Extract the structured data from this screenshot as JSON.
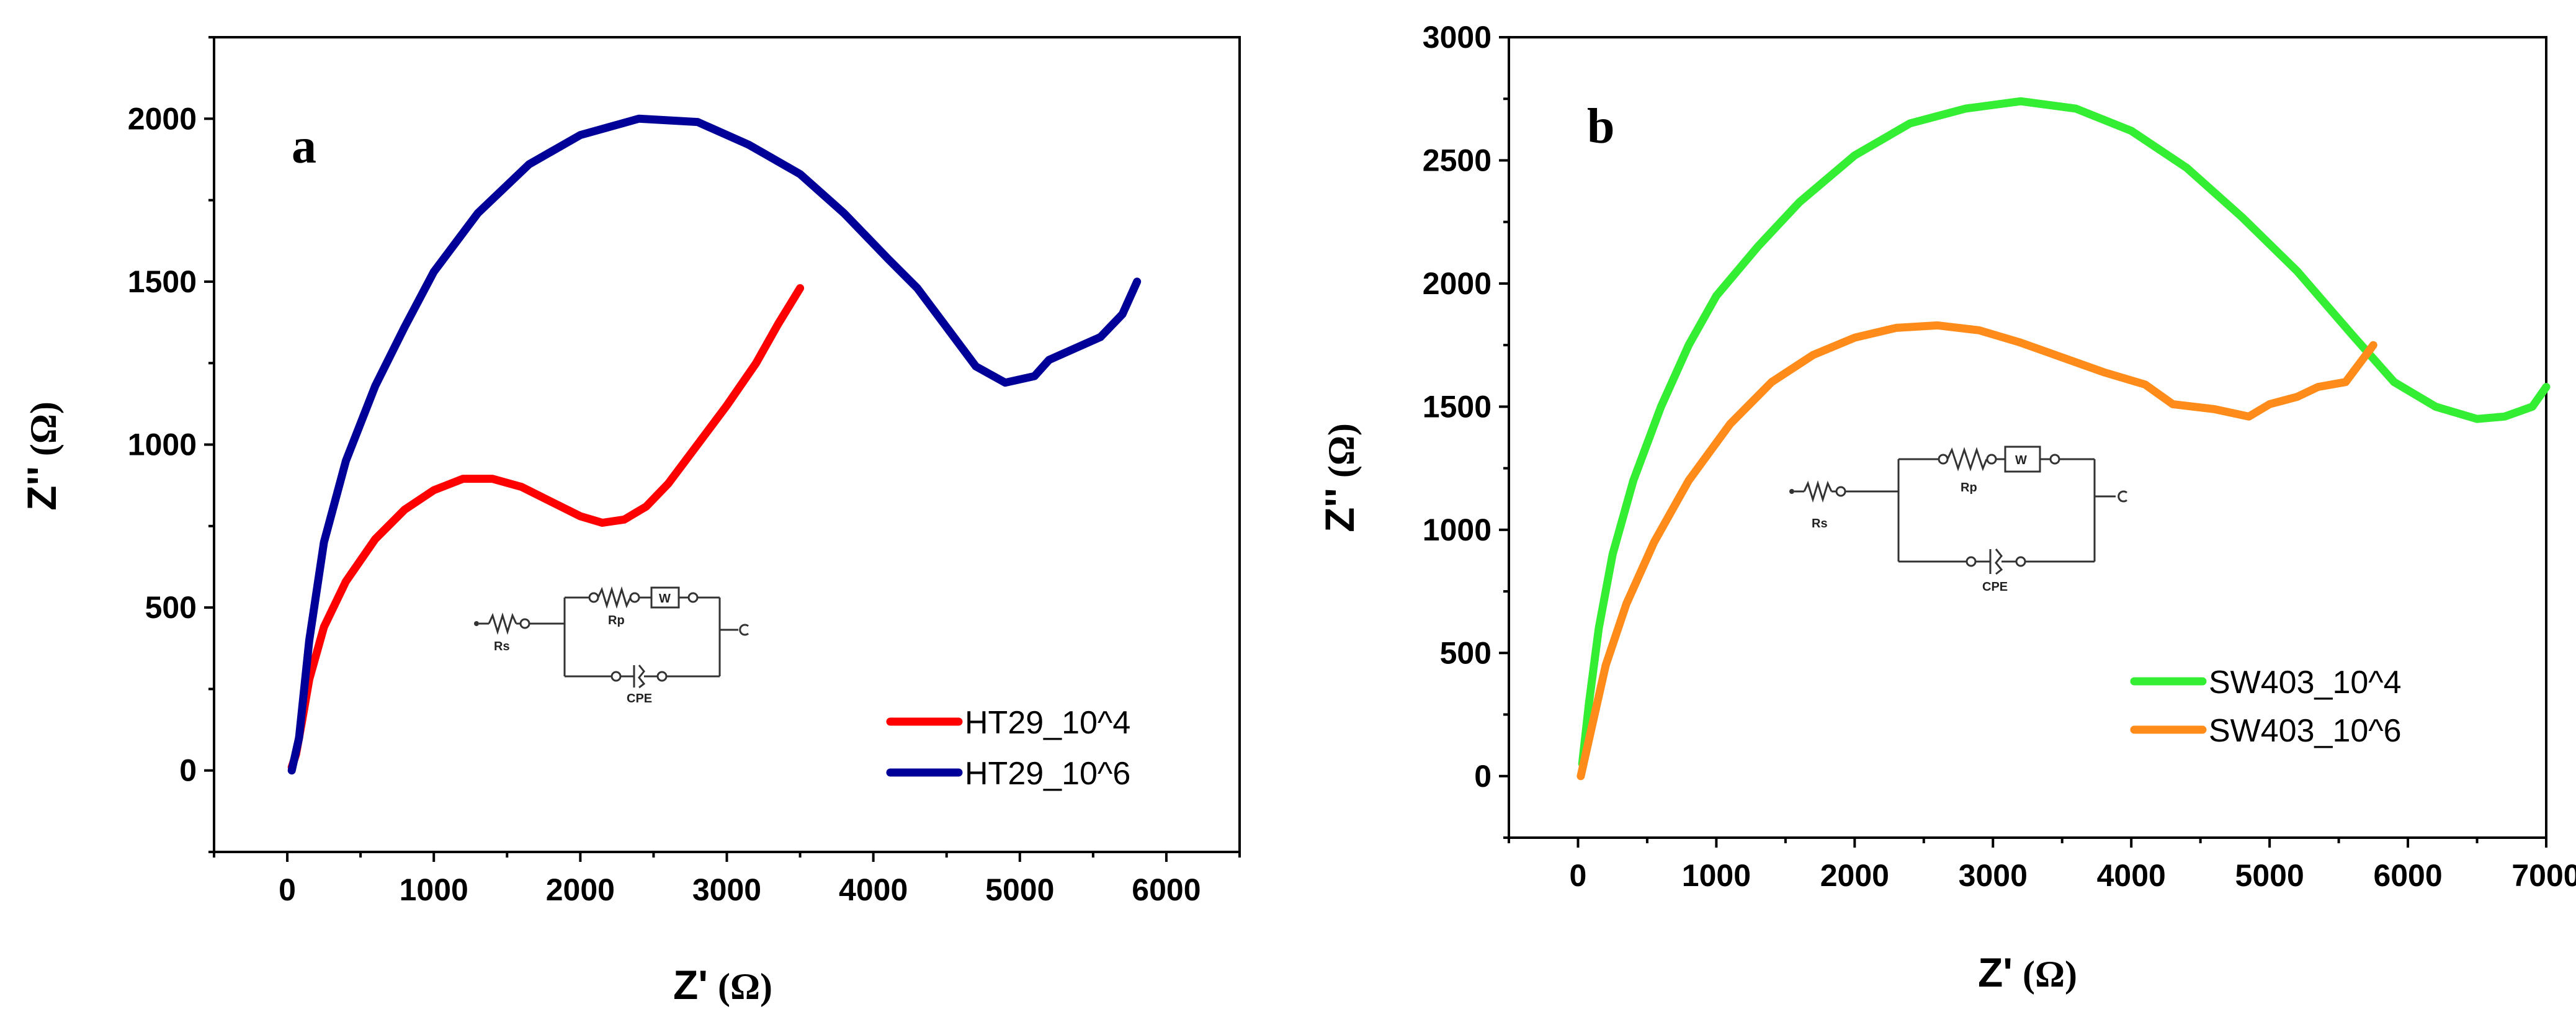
{
  "chart_data": [
    {
      "type": "line",
      "panel_label": "a",
      "xlabel": "Z'",
      "ylabel": "Z''",
      "unit": "(Ω)",
      "xlim": [
        -500,
        6500
      ],
      "ylim": [
        -250,
        2250
      ],
      "xticks": [
        0,
        1000,
        2000,
        3000,
        4000,
        5000,
        6000
      ],
      "yticks": [
        0,
        500,
        1000,
        1500,
        2000
      ],
      "legend_position": "bottom-right",
      "circuit": {
        "rs": "Rs",
        "rp": "Rp",
        "w": "W",
        "cpe": "CPE"
      },
      "series": [
        {
          "name": "HT29_10^4",
          "color": "#ff0000",
          "x": [
            30,
            60,
            100,
            150,
            250,
            400,
            600,
            800,
            1000,
            1200,
            1400,
            1600,
            1800,
            2000,
            2150,
            2300,
            2450,
            2600,
            2800,
            3000,
            3200,
            3350,
            3500
          ],
          "y": [
            10,
            50,
            150,
            280,
            440,
            580,
            710,
            800,
            860,
            895,
            895,
            870,
            825,
            780,
            760,
            770,
            810,
            880,
            1000,
            1120,
            1250,
            1370,
            1480
          ]
        },
        {
          "name": "HT29_10^6",
          "color": "#000099",
          "x": [
            30,
            80,
            150,
            250,
            400,
            600,
            800,
            1000,
            1300,
            1650,
            2000,
            2400,
            2800,
            3150,
            3500,
            3800,
            4100,
            4300,
            4500,
            4700,
            4900,
            5100,
            5200,
            5350,
            5550,
            5700,
            5800
          ],
          "y": [
            0,
            100,
            400,
            700,
            950,
            1180,
            1360,
            1530,
            1710,
            1860,
            1950,
            2000,
            1990,
            1920,
            1830,
            1710,
            1570,
            1480,
            1360,
            1240,
            1190,
            1210,
            1260,
            1290,
            1330,
            1400,
            1500
          ]
        }
      ]
    },
    {
      "type": "line",
      "panel_label": "b",
      "xlabel": "Z'",
      "ylabel": "Z''",
      "unit": "(Ω)",
      "xlim": [
        -500,
        7000
      ],
      "ylim": [
        -250,
        3000
      ],
      "xticks": [
        0,
        1000,
        2000,
        3000,
        4000,
        5000,
        6000,
        7000
      ],
      "yticks": [
        0,
        500,
        1000,
        1500,
        2000,
        2500,
        3000
      ],
      "legend_position": "bottom-right",
      "circuit": {
        "rs": "Rs",
        "rp": "Rp",
        "w": "W",
        "cpe": "CPE"
      },
      "series": [
        {
          "name": "SW403_10^4",
          "color": "#33ee33",
          "x": [
            30,
            80,
            150,
            250,
            400,
            600,
            800,
            1000,
            1300,
            1600,
            2000,
            2400,
            2800,
            3200,
            3600,
            4000,
            4400,
            4800,
            5200,
            5600,
            5900,
            6200,
            6500,
            6700,
            6900,
            7000
          ],
          "y": [
            50,
            300,
            600,
            900,
            1200,
            1500,
            1750,
            1950,
            2150,
            2330,
            2520,
            2650,
            2710,
            2740,
            2710,
            2620,
            2470,
            2270,
            2050,
            1790,
            1600,
            1500,
            1450,
            1460,
            1500,
            1580
          ]
        },
        {
          "name": "SW403_10^6",
          "color": "#ff8c1a",
          "x": [
            20,
            60,
            120,
            200,
            350,
            550,
            800,
            1100,
            1400,
            1700,
            2000,
            2300,
            2600,
            2900,
            3200,
            3500,
            3800,
            4100,
            4300,
            4600,
            4850,
            5000,
            5200,
            5350,
            5550,
            5750
          ],
          "y": [
            0,
            100,
            250,
            450,
            700,
            950,
            1200,
            1430,
            1600,
            1710,
            1780,
            1820,
            1830,
            1810,
            1760,
            1700,
            1640,
            1590,
            1510,
            1490,
            1460,
            1510,
            1540,
            1580,
            1600,
            1750
          ]
        }
      ]
    }
  ]
}
